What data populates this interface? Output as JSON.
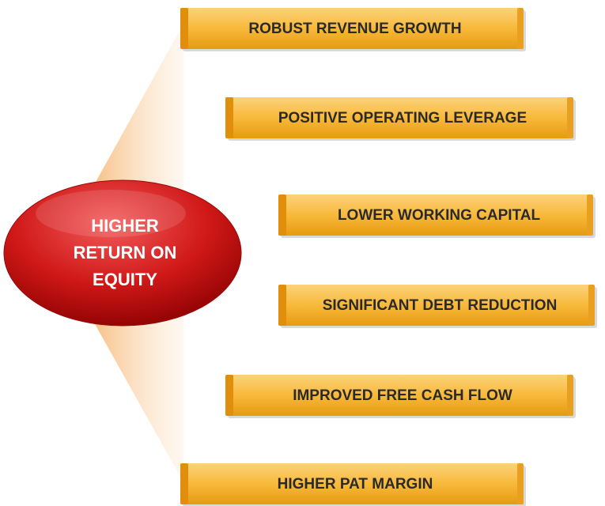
{
  "center": {
    "lines": [
      "HIGHER",
      "RETURN ON",
      "EQUITY"
    ]
  },
  "items": [
    {
      "label": "ROBUST REVENUE GROWTH"
    },
    {
      "label": "POSITIVE OPERATING LEVERAGE"
    },
    {
      "label": "LOWER WORKING CAPITAL"
    },
    {
      "label": "SIGNIFICANT DEBT REDUCTION"
    },
    {
      "label": "IMPROVED FREE CASH FLOW"
    },
    {
      "label": "HIGHER PAT MARGIN"
    }
  ]
}
